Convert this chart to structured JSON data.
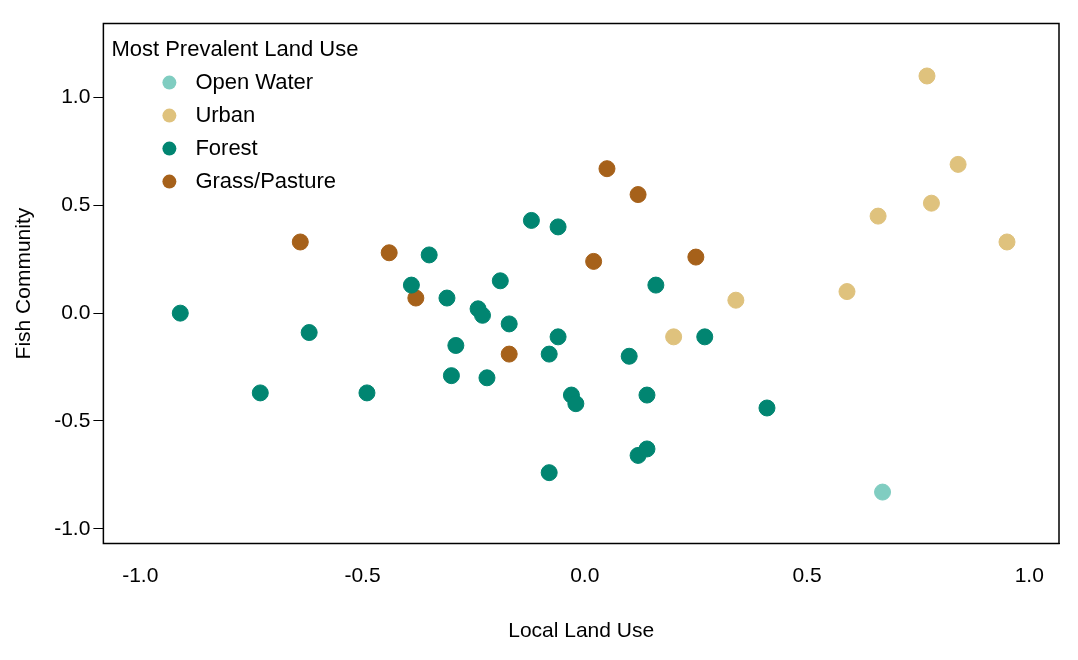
{
  "chart_data": {
    "type": "scatter",
    "xlabel": "Local Land Use",
    "ylabel": "Fish Community",
    "legend_title": "Most Prevalent Land Use",
    "legend": "top left",
    "marker": "circle",
    "grid": false,
    "xlim": [
      -1.083,
      1.067
    ],
    "ylim": [
      -1.069,
      1.343
    ],
    "xticks": [
      {
        "value": -1,
        "label": "-1.0"
      },
      {
        "value": -0.5,
        "label": "-0.5"
      },
      {
        "value": 0,
        "label": "0.0"
      },
      {
        "value": 0.5,
        "label": "0.5"
      },
      {
        "value": 1,
        "label": "1.0"
      }
    ],
    "yticks": [
      {
        "value": -1,
        "label": "-1.0"
      },
      {
        "value": -0.5,
        "label": "-0.5"
      },
      {
        "value": 0,
        "label": "0.0"
      },
      {
        "value": 0.5,
        "label": "0.5"
      },
      {
        "value": 1,
        "label": "1.0"
      }
    ],
    "series": [
      {
        "name": "Open Water",
        "color": "#80cdc1",
        "x": [
          0.67
        ],
        "values": [
          -0.83
        ]
      },
      {
        "name": "Urban",
        "color": "#dfc27d",
        "x": [
          0.77,
          0.84,
          0.78,
          0.66,
          0.95,
          0.59,
          0.34,
          0.2
        ],
        "values": [
          1.1,
          0.69,
          0.51,
          0.45,
          0.33,
          0.1,
          0.06,
          -0.11
        ]
      },
      {
        "name": "Forest",
        "color": "#018571",
        "x": [
          -0.91,
          -0.73,
          -0.62,
          -0.49,
          -0.35,
          -0.39,
          -0.31,
          -0.29,
          -0.3,
          -0.24,
          -0.23,
          -0.19,
          -0.17,
          -0.22,
          -0.12,
          -0.06,
          -0.06,
          -0.08,
          -0.03,
          -0.02,
          -0.08,
          0.1,
          0.16,
          0.27,
          0.14,
          0.12,
          0.14,
          0.41
        ],
        "values": [
          0,
          -0.37,
          -0.09,
          -0.37,
          0.27,
          0.13,
          0.07,
          -0.15,
          -0.29,
          0.02,
          -0.01,
          0.15,
          -0.05,
          -0.3,
          0.43,
          0.4,
          -0.11,
          -0.19,
          -0.38,
          -0.42,
          -0.74,
          -0.2,
          0.13,
          -0.11,
          -0.38,
          -0.66,
          -0.63,
          -0.44
        ]
      },
      {
        "name": "Grass/Pasture",
        "color": "#a6611a",
        "x": [
          -0.64,
          -0.44,
          -0.38,
          0.05,
          0.12,
          0.02,
          0.25,
          -0.17
        ],
        "values": [
          0.33,
          0.28,
          0.07,
          0.67,
          0.55,
          0.24,
          0.26,
          -0.19
        ]
      }
    ]
  }
}
